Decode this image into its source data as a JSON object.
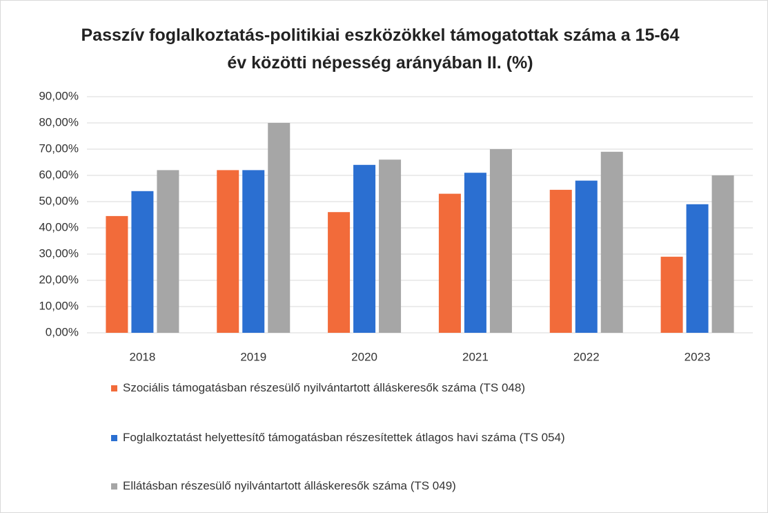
{
  "chart_data": {
    "type": "bar",
    "title": "Passzív foglalkoztatás-politikiai eszközökkel támogatottak száma a 15-64 év közötti népesség arányában II. (%)",
    "categories": [
      "2018",
      "2019",
      "2020",
      "2021",
      "2022",
      "2023"
    ],
    "series": [
      {
        "name": "Szociális támogatásban részesülő nyilvántartott álláskeresők száma (TS 048)",
        "color": "#f26b3a",
        "values": [
          44.5,
          62,
          46,
          53,
          54.5,
          29
        ]
      },
      {
        "name": "Foglalkoztatást helyettesítő támogatásban részesítettek átlagos havi száma (TS 054)",
        "color": "#2b6fd1",
        "values": [
          54,
          62,
          64,
          61,
          58,
          49
        ]
      },
      {
        "name": "Ellátásban részesülő nyilvántartott álláskeresők száma (TS 049)",
        "color": "#a6a6a6",
        "values": [
          62,
          80,
          66,
          70,
          69,
          60
        ]
      }
    ],
    "ylim": [
      0,
      90
    ],
    "yticks": [
      {
        "value": 0,
        "label": "0,00%"
      },
      {
        "value": 10,
        "label": "10,00%"
      },
      {
        "value": 20,
        "label": "20,00%"
      },
      {
        "value": 30,
        "label": "30,00%"
      },
      {
        "value": 40,
        "label": "40,00%"
      },
      {
        "value": 50,
        "label": "50,00%"
      },
      {
        "value": 60,
        "label": "60,00%"
      },
      {
        "value": 70,
        "label": "70,00%"
      },
      {
        "value": 80,
        "label": "80,00%"
      },
      {
        "value": 90,
        "label": "90,00%"
      }
    ],
    "grid": true
  }
}
